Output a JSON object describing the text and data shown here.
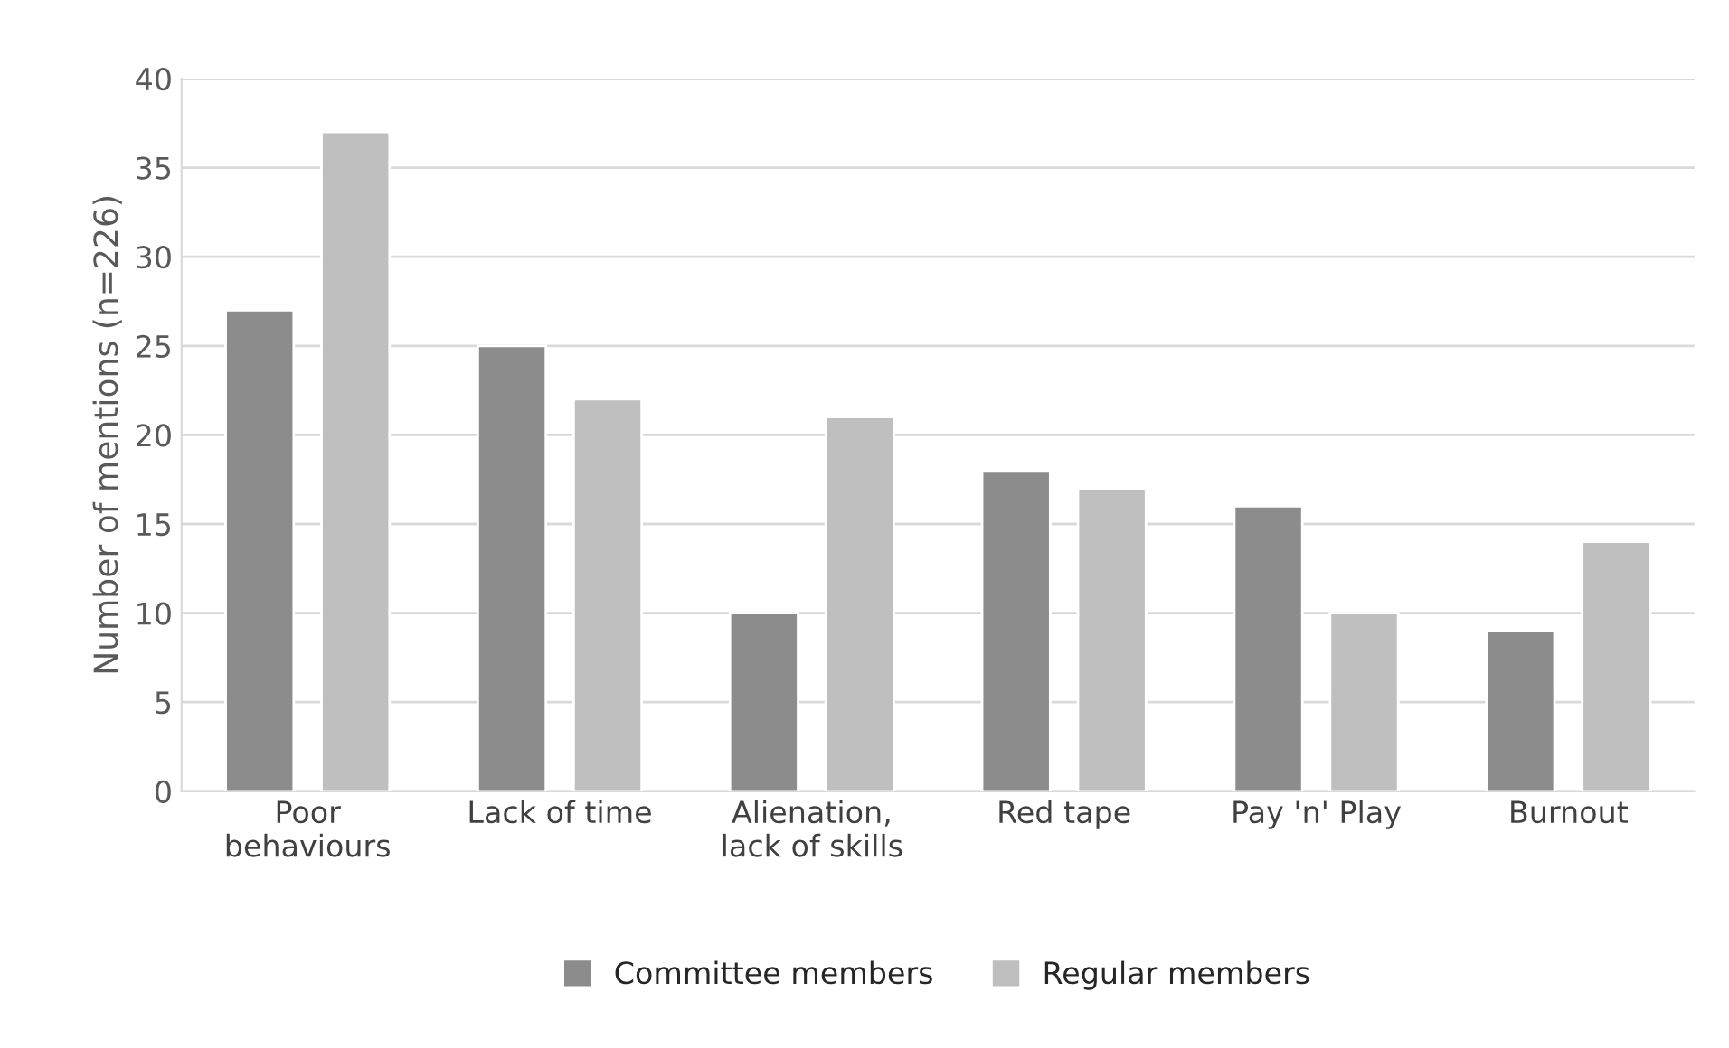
{
  "chart_data": {
    "type": "bar",
    "categories": [
      "Poor\nbehaviours",
      "Lack of time",
      "Alienation,\nlack of skills",
      "Red tape",
      "Pay 'n' Play",
      "Burnout"
    ],
    "series": [
      {
        "name": "Committee members",
        "color": "#8c8c8c",
        "values": [
          27,
          25,
          10,
          18,
          16,
          9
        ]
      },
      {
        "name": "Regular members",
        "color": "#bfbfbf",
        "values": [
          37,
          22,
          21,
          17,
          10,
          14
        ]
      }
    ],
    "ylabel": "Number of mentions (n=226)",
    "ylim": [
      0,
      40
    ],
    "yticks": [
      0,
      5,
      10,
      15,
      20,
      25,
      30,
      35,
      40
    ],
    "grid": "y",
    "legend": "bottom"
  }
}
